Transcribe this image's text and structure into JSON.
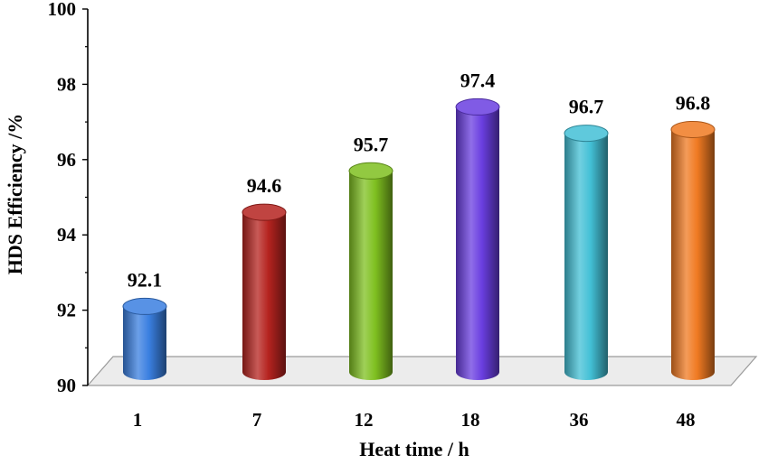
{
  "chart_data": {
    "type": "bar",
    "style": "3d-cylinder",
    "categories": [
      "1",
      "7",
      "12",
      "18",
      "36",
      "48"
    ],
    "values": [
      92.1,
      94.6,
      95.7,
      97.4,
      96.7,
      96.8
    ],
    "data_labels": [
      "92.1",
      "94.6",
      "95.7",
      "97.4",
      "96.7",
      "96.8"
    ],
    "bar_colors": [
      "#3a7fe0",
      "#b5231f",
      "#7fc020",
      "#6a3ee0",
      "#43c0d6",
      "#f07a22"
    ],
    "title": "",
    "xlabel": "Heat  time / h",
    "ylabel": "HDS Efficiency /%",
    "ylim": [
      90,
      100
    ],
    "yticks": [
      "90",
      "92",
      "94",
      "96",
      "98",
      "100"
    ],
    "grid": false,
    "legend": "none"
  }
}
